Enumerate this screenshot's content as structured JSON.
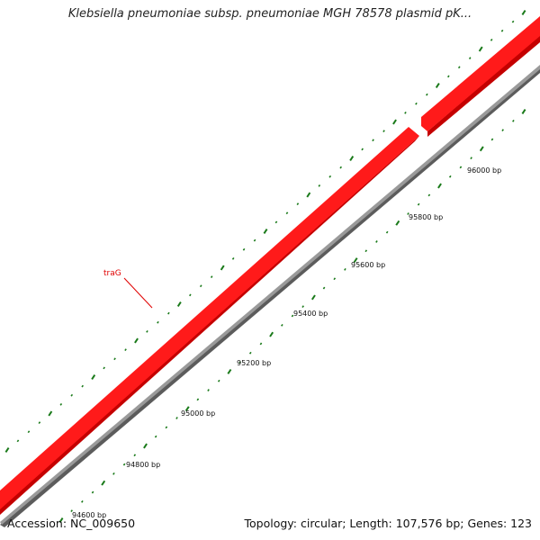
{
  "title": "Klebsiella pneumoniae subsp. pneumoniae MGH 78578 plasmid pK...",
  "footer": {
    "accession": "Accession: NC_009650",
    "summary": "Topology: circular; Length: 107,576 bp; Genes: 123"
  },
  "colors": {
    "gene_fill": "#ff1a1a",
    "gene_shadow": "#c40000",
    "backbone": "#9a9a9a",
    "backbone_shadow": "#5c5c5c",
    "tick": "#1a7a1a",
    "gene_label": "#e00000",
    "background": "#ffffff"
  },
  "features": [
    {
      "name": "traG",
      "strand": "forward",
      "type": "gene",
      "color": "red"
    },
    {
      "name": "",
      "strand": "forward",
      "type": "gene",
      "color": "red"
    }
  ],
  "gene_label": "traG",
  "scale_labels": [
    "94600 bp",
    "94800 bp",
    "95000 bp",
    "95200 bp",
    "95400 bp",
    "95600 bp",
    "95800 bp",
    "96000 bp"
  ]
}
